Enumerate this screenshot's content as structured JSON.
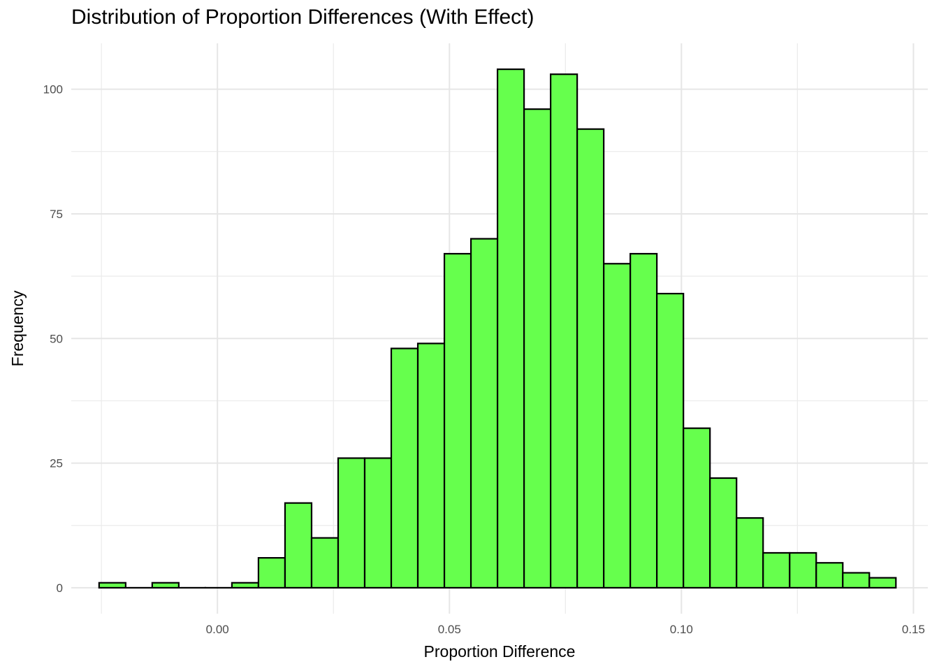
{
  "chart_data": {
    "type": "bar",
    "subtype": "histogram",
    "title": "Distribution of Proportion Differences (With Effect)",
    "xlabel": "Proportion Difference",
    "ylabel": "Frequency",
    "xlim": [
      -0.0315,
      0.1531
    ],
    "ylim": [
      -5.2,
      109.2
    ],
    "x_ticks": [
      0.0,
      0.05,
      0.1,
      0.15
    ],
    "x_tick_labels": [
      "0.00",
      "0.05",
      "0.10",
      "0.15"
    ],
    "y_ticks": [
      0,
      25,
      50,
      75,
      100
    ],
    "y_tick_labels": [
      "0",
      "25",
      "50",
      "75",
      "100"
    ],
    "bin_start": -0.0255,
    "bin_width": 0.005724,
    "values": [
      1,
      0,
      1,
      0,
      0,
      1,
      6,
      17,
      10,
      26,
      26,
      48,
      49,
      67,
      70,
      104,
      96,
      103,
      92,
      65,
      67,
      59,
      32,
      22,
      14,
      7,
      7,
      5,
      3,
      2
    ],
    "fill_color": "#66ff4d",
    "edge_color": "#000000",
    "grid": true,
    "legend": "none"
  }
}
